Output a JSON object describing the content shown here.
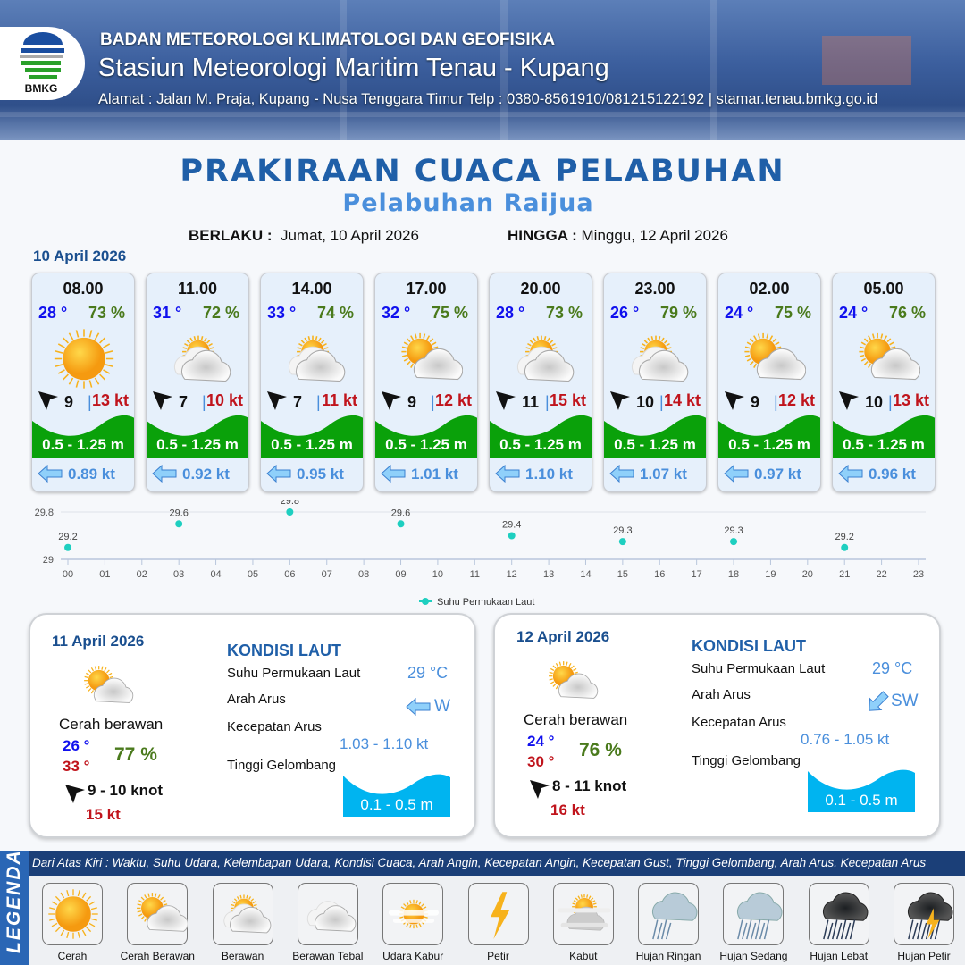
{
  "header": {
    "logo_text": "BMKG",
    "agency": "BADAN METEOROLOGI KLIMATOLOGI DAN GEOFISIKA",
    "station": "Stasiun Meteorologi Maritim Tenau - Kupang",
    "address": "Alamat : Jalan M. Praja, Kupang - Nusa Tenggara Timur Telp : 0380-8561910/081215122192  | stamar.tenau.bmkg.go.id"
  },
  "title": "PRAKIRAAN CUACA PELABUHAN",
  "subtitle": "Pelabuhan Raijua",
  "validity": {
    "from_label": "BERLAKU :",
    "from": "Jumat, 10 April 2026",
    "to_label": "HINGGA :",
    "to": "Minggu, 12 April 2026"
  },
  "day1": {
    "date": "10 April 2026",
    "cards": [
      {
        "time": "08.00",
        "temp": "28 °",
        "hum": "73 %",
        "icon": "sun",
        "wind": "9",
        "gust": "13 kt",
        "wave": "0.5 - 1.25 m",
        "current": "0.89 kt"
      },
      {
        "time": "11.00",
        "temp": "31 °",
        "hum": "72 %",
        "icon": "cloud-sun-light",
        "wind": "7",
        "gust": "10 kt",
        "wave": "0.5 - 1.25 m",
        "current": "0.92 kt"
      },
      {
        "time": "14.00",
        "temp": "33 °",
        "hum": "74 %",
        "icon": "cloud-sun-light",
        "wind": "7",
        "gust": "11 kt",
        "wave": "0.5 - 1.25 m",
        "current": "0.95 kt"
      },
      {
        "time": "17.00",
        "temp": "32 °",
        "hum": "75 %",
        "icon": "cloud-sun",
        "wind": "9",
        "gust": "12 kt",
        "wave": "0.5 - 1.25 m",
        "current": "1.01 kt"
      },
      {
        "time": "20.00",
        "temp": "28 °",
        "hum": "73 %",
        "icon": "cloud-sun-light",
        "wind": "11",
        "gust": "15 kt",
        "wave": "0.5 - 1.25 m",
        "current": "1.10 kt"
      },
      {
        "time": "23.00",
        "temp": "26 °",
        "hum": "79 %",
        "icon": "cloud-sun-light",
        "wind": "10",
        "gust": "14 kt",
        "wave": "0.5 - 1.25 m",
        "current": "1.07 kt"
      },
      {
        "time": "02.00",
        "temp": "24 °",
        "hum": "75 %",
        "icon": "cloud-sun",
        "wind": "9",
        "gust": "12 kt",
        "wave": "0.5 - 1.25 m",
        "current": "0.97 kt"
      },
      {
        "time": "05.00",
        "temp": "24 °",
        "hum": "76 %",
        "icon": "cloud-sun",
        "wind": "10",
        "gust": "13 kt",
        "wave": "0.5 - 1.25 m",
        "current": "0.96 kt"
      }
    ]
  },
  "colors": {
    "temp": "#1010ee",
    "humidity": "#4a7a1c",
    "gust": "#c0141c",
    "wave_green": "#0aa10a",
    "wave_blue": "#00b4f0",
    "current": "#4a8fdc",
    "title": "#1f5fa8"
  },
  "chart_data": {
    "type": "scatter",
    "title": "",
    "xlabel": "",
    "ylabel": "",
    "categories": [
      "00",
      "01",
      "02",
      "03",
      "04",
      "05",
      "06",
      "07",
      "08",
      "09",
      "10",
      "11",
      "12",
      "13",
      "14",
      "15",
      "16",
      "17",
      "18",
      "19",
      "20",
      "21",
      "22",
      "23"
    ],
    "yticks": [
      "29",
      "29.8"
    ],
    "ylim": [
      29,
      29.8
    ],
    "grid": true,
    "legend_position": "bottom",
    "series": [
      {
        "name": "Suhu Permukaan Laut",
        "color": "#1ecfc0",
        "points": [
          {
            "x": "00",
            "y": 29.2
          },
          {
            "x": "03",
            "y": 29.6
          },
          {
            "x": "06",
            "y": 29.8
          },
          {
            "x": "09",
            "y": 29.6
          },
          {
            "x": "12",
            "y": 29.4
          },
          {
            "x": "15",
            "y": 29.3
          },
          {
            "x": "18",
            "y": 29.3
          },
          {
            "x": "21",
            "y": 29.2
          }
        ]
      }
    ]
  },
  "panels": [
    {
      "date": "11 April 2026",
      "condition": "Cerah berawan",
      "icon": "cloud-sun",
      "temp_min": "26 °",
      "temp_max": "33 °",
      "hum": "77 %",
      "wind": "9 - 10 knot",
      "gust": "15 kt",
      "sea_title": "KONDISI LAUT",
      "sst_label": "Suhu Permukaan Laut",
      "sst": "29 °C",
      "dir_label": "Arah Arus",
      "dir": "W",
      "spd_label": "Kecepatan Arus",
      "spd": "1.03 - 1.10 kt",
      "wave_label": "Tinggi Gelombang",
      "wave": "0.1 - 0.5 m"
    },
    {
      "date": "12 April 2026",
      "condition": "Cerah berawan",
      "icon": "cloud-sun",
      "temp_min": "24 °",
      "temp_max": "30 °",
      "hum": "76 %",
      "wind": "8 - 11 knot",
      "gust": "16 kt",
      "sea_title": "KONDISI LAUT",
      "sst_label": "Suhu Permukaan Laut",
      "sst": "29 °C",
      "dir_label": "Arah Arus",
      "dir": "SW",
      "spd_label": "Kecepatan Arus",
      "spd": "0.76 - 1.05 kt",
      "wave_label": "Tinggi Gelombang",
      "wave": "0.1 - 0.5 m"
    }
  ],
  "legend": {
    "title": "LEGENDA",
    "description": "Dari Atas Kiri : Waktu, Suhu Udara, Kelembapan Udara, Kondisi Cuaca, Arah Angin, Kecepatan Angin, Kecepatan Gust, Tinggi Gelombang, Arah Arus, Kecepatan Arus",
    "items": [
      {
        "label": "Cerah",
        "icon": "sun"
      },
      {
        "label": "Cerah Berawan",
        "icon": "cloud-sun"
      },
      {
        "label": "Berawan",
        "icon": "cloud-sun-light"
      },
      {
        "label": "Berawan Tebal",
        "icon": "clouds"
      },
      {
        "label": "Udara Kabur",
        "icon": "haze"
      },
      {
        "label": "Petir",
        "icon": "lightning"
      },
      {
        "label": "Kabut",
        "icon": "fog"
      },
      {
        "label": "Hujan Ringan",
        "icon": "rain-light"
      },
      {
        "label": "Hujan Sedang",
        "icon": "rain-moderate"
      },
      {
        "label": "Hujan Lebat",
        "icon": "rain-heavy"
      },
      {
        "label": "Hujan Petir",
        "icon": "thunderstorm"
      }
    ]
  }
}
